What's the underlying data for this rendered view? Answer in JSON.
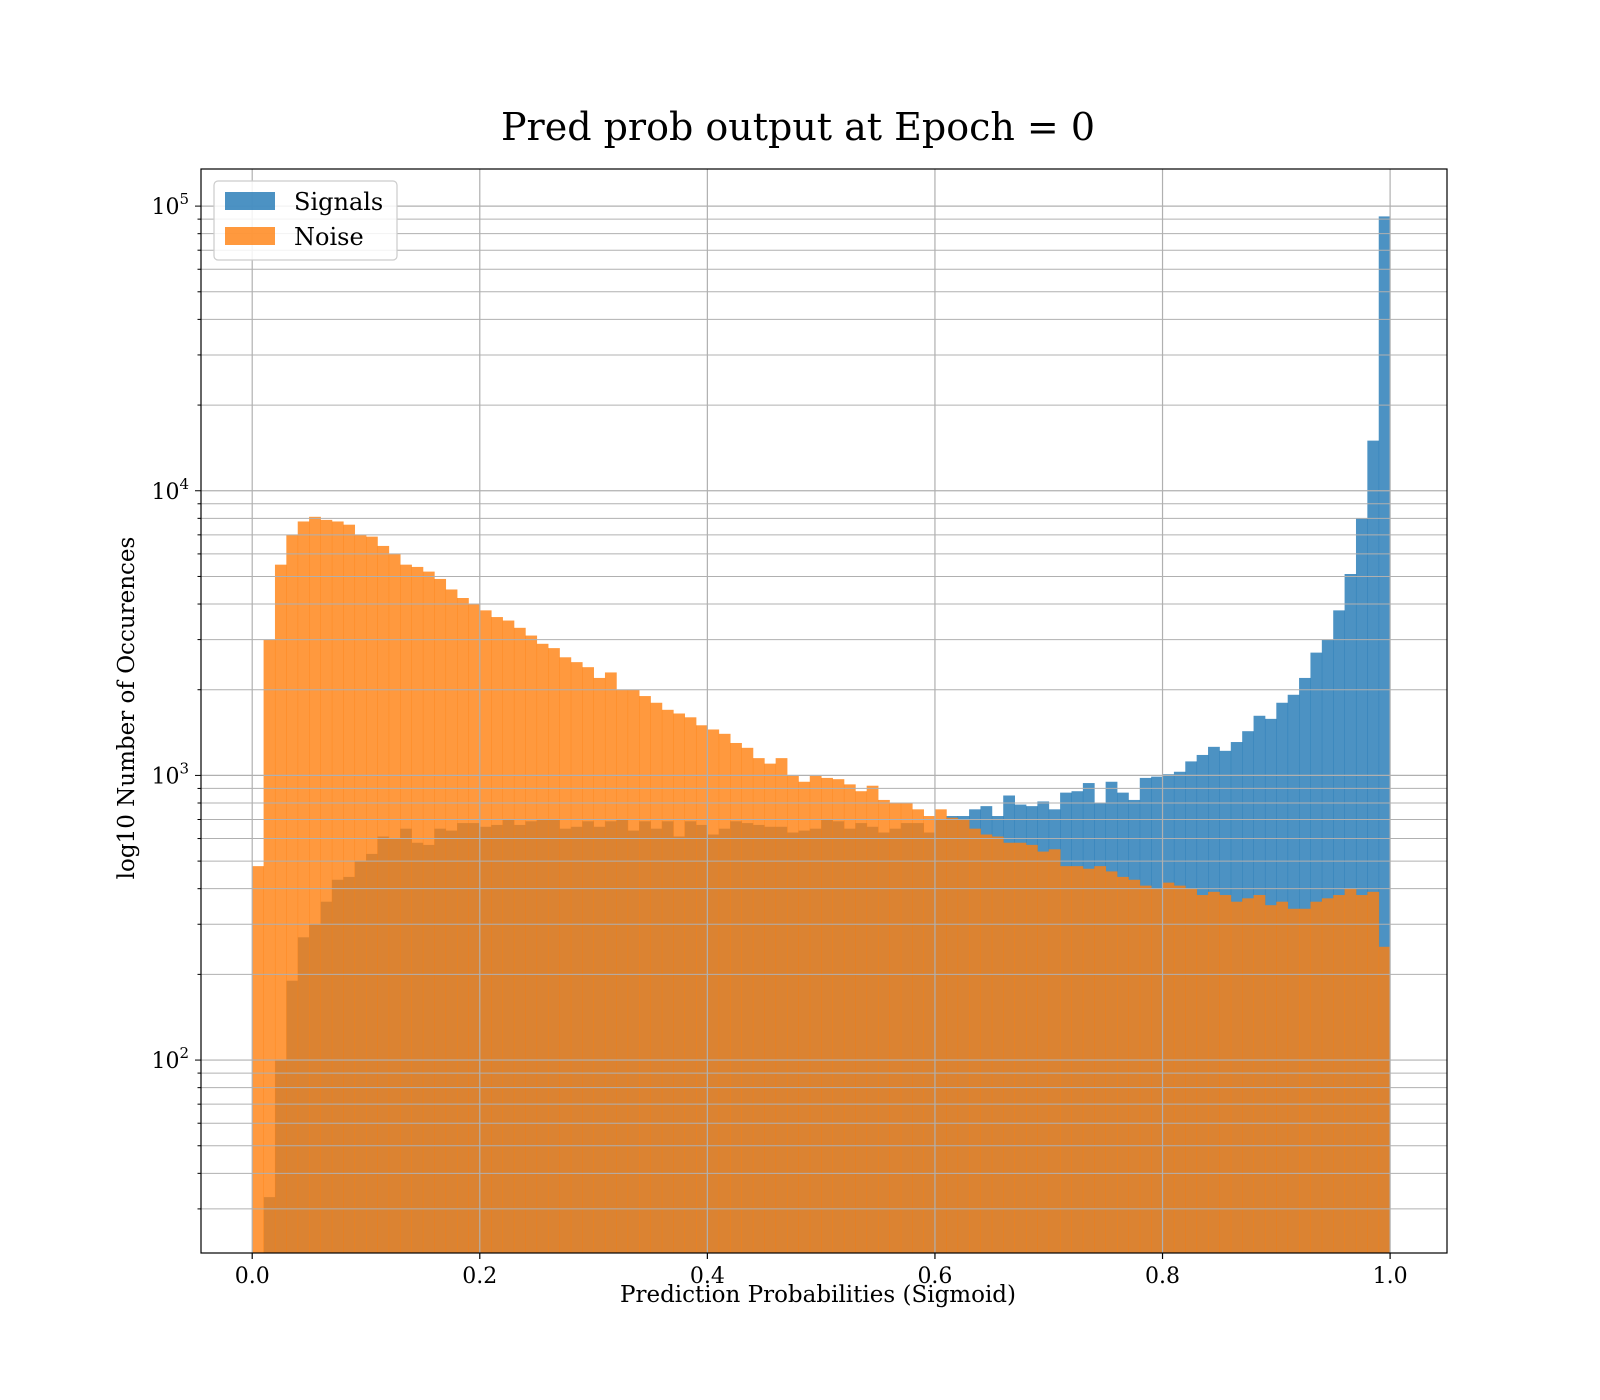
{
  "chart_data": {
    "type": "bar",
    "title": "Pred prob output at Epoch = 0",
    "xlabel": "Prediction Probabilities (Sigmoid)",
    "ylabel": "log10 Number of Occurences",
    "xlim": [
      -0.045,
      1.05
    ],
    "ylim": [
      21,
      135000
    ],
    "yscale": "log",
    "grid": true,
    "legend_position": "top-left",
    "bins": 100,
    "bin_range": [
      0,
      1
    ],
    "x_ticks": [
      "0.0",
      "0.2",
      "0.4",
      "0.6",
      "0.8",
      "1.0"
    ],
    "x_tick_values": [
      0,
      0.2,
      0.4,
      0.6,
      0.8,
      1.0
    ],
    "y_ticks": [
      {
        "base": "10",
        "exp": "2",
        "value": 100
      },
      {
        "base": "10",
        "exp": "3",
        "value": 1000
      },
      {
        "base": "10",
        "exp": "4",
        "value": 10000
      },
      {
        "base": "10",
        "exp": "5",
        "value": 100000
      }
    ],
    "series": [
      {
        "name": "Signals",
        "color": "#1f77b4",
        "values": [
          0,
          33,
          100,
          190,
          270,
          300,
          360,
          430,
          440,
          500,
          530,
          610,
          600,
          650,
          580,
          570,
          650,
          640,
          680,
          680,
          660,
          670,
          700,
          670,
          690,
          700,
          700,
          650,
          660,
          690,
          660,
          690,
          700,
          640,
          690,
          650,
          690,
          610,
          690,
          670,
          620,
          650,
          690,
          680,
          670,
          660,
          660,
          630,
          640,
          650,
          700,
          690,
          650,
          680,
          660,
          630,
          650,
          680,
          680,
          630,
          700,
          720,
          720,
          760,
          780,
          720,
          850,
          790,
          780,
          810,
          760,
          870,
          880,
          940,
          800,
          950,
          870,
          820,
          980,
          990,
          1010,
          1030,
          1120,
          1180,
          1260,
          1220,
          1310,
          1430,
          1620,
          1580,
          1800,
          1920,
          2200,
          2700,
          3000,
          3800,
          5100,
          8000,
          15000,
          92000
        ]
      },
      {
        "name": "Noise",
        "color": "#ff7f0e",
        "values": [
          480,
          3000,
          5500,
          7000,
          7800,
          8100,
          7900,
          7800,
          7600,
          7000,
          6900,
          6400,
          6000,
          5500,
          5400,
          5200,
          4900,
          4500,
          4200,
          4000,
          3800,
          3600,
          3500,
          3300,
          3100,
          2900,
          2800,
          2600,
          2500,
          2400,
          2200,
          2300,
          2000,
          2000,
          1900,
          1800,
          1700,
          1650,
          1600,
          1500,
          1450,
          1400,
          1300,
          1250,
          1150,
          1100,
          1150,
          1000,
          950,
          1000,
          980,
          970,
          930,
          880,
          920,
          820,
          800,
          800,
          760,
          720,
          760,
          710,
          700,
          650,
          620,
          610,
          580,
          580,
          570,
          540,
          550,
          480,
          480,
          470,
          480,
          460,
          440,
          430,
          410,
          400,
          420,
          410,
          400,
          380,
          390,
          380,
          360,
          370,
          380,
          350,
          360,
          340,
          340,
          360,
          370,
          380,
          400,
          380,
          390,
          250
        ]
      }
    ]
  }
}
